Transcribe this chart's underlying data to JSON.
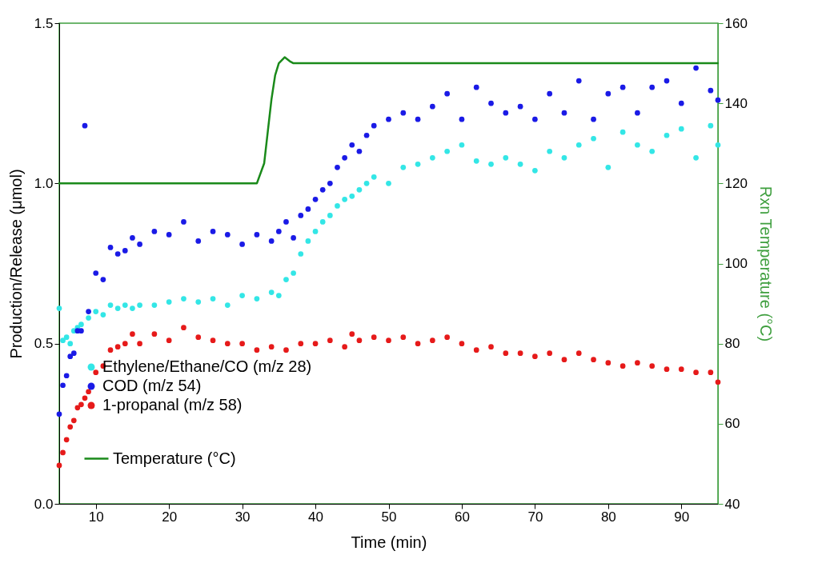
{
  "chart_data": {
    "type": "scatter",
    "xlabel": "Time (min)",
    "ylabel": "Production/Release (μmol)",
    "y2label": "Rxn Temperature (°C)",
    "xlim": [
      5,
      95
    ],
    "xticks": [
      10,
      20,
      30,
      40,
      50,
      60,
      70,
      80,
      90
    ],
    "ylim": [
      0,
      1.5
    ],
    "yticks": [
      {
        "value": 0,
        "label": "0.0"
      },
      0.5,
      {
        "value": 1,
        "label": "1.0"
      },
      1.5
    ],
    "y2lim": [
      40,
      160
    ],
    "y2ticks": [
      40,
      60,
      80,
      100,
      120,
      140,
      160
    ],
    "grid": false,
    "legend": "bottom left",
    "marker": "circle",
    "series": [
      {
        "name": "Ethylene/Ethane/CO (m/z 28)",
        "color": "#33e6e6",
        "x": [
          5,
          5.5,
          6,
          6.5,
          7,
          7.5,
          8,
          9,
          10,
          11,
          12,
          13,
          14,
          15,
          16,
          18,
          20,
          22,
          24,
          26,
          28,
          30,
          32,
          34,
          35,
          36,
          37,
          38,
          39,
          40,
          41,
          42,
          43,
          44,
          45,
          46,
          47,
          48,
          50,
          52,
          54,
          56,
          58,
          60,
          62,
          64,
          66,
          68,
          70,
          72,
          74,
          76,
          78,
          80,
          82,
          84,
          86,
          88,
          90,
          92,
          94,
          95
        ],
        "values": [
          0.61,
          0.51,
          0.52,
          0.5,
          0.54,
          0.55,
          0.56,
          0.58,
          0.6,
          0.59,
          0.62,
          0.61,
          0.62,
          0.61,
          0.62,
          0.62,
          0.63,
          0.64,
          0.63,
          0.64,
          0.62,
          0.65,
          0.64,
          0.66,
          0.65,
          0.7,
          0.72,
          0.78,
          0.82,
          0.85,
          0.88,
          0.9,
          0.93,
          0.95,
          0.96,
          0.98,
          1.0,
          1.02,
          1.0,
          1.05,
          1.06,
          1.08,
          1.1,
          1.12,
          1.07,
          1.06,
          1.08,
          1.06,
          1.04,
          1.1,
          1.08,
          1.12,
          1.14,
          1.05,
          1.16,
          1.12,
          1.1,
          1.15,
          1.17,
          1.08,
          1.18,
          1.12
        ]
      },
      {
        "name": "COD (m/z 54)",
        "color": "#1a1ae6",
        "x": [
          5,
          5.5,
          6,
          6.5,
          7,
          7.5,
          8,
          8.5,
          9,
          10,
          11,
          12,
          13,
          14,
          15,
          16,
          18,
          20,
          22,
          24,
          26,
          28,
          30,
          32,
          34,
          35,
          36,
          37,
          38,
          39,
          40,
          41,
          42,
          43,
          44,
          45,
          46,
          47,
          48,
          50,
          52,
          54,
          56,
          58,
          60,
          62,
          64,
          66,
          68,
          70,
          72,
          74,
          76,
          78,
          80,
          82,
          84,
          86,
          88,
          90,
          92,
          94,
          95
        ],
        "values": [
          0.28,
          0.37,
          0.4,
          0.46,
          0.47,
          0.54,
          0.54,
          1.18,
          0.6,
          0.72,
          0.7,
          0.8,
          0.78,
          0.79,
          0.83,
          0.81,
          0.85,
          0.84,
          0.88,
          0.82,
          0.85,
          0.84,
          0.81,
          0.84,
          0.82,
          0.85,
          0.88,
          0.83,
          0.9,
          0.92,
          0.95,
          0.98,
          1.0,
          1.05,
          1.08,
          1.12,
          1.1,
          1.15,
          1.18,
          1.2,
          1.22,
          1.2,
          1.24,
          1.28,
          1.2,
          1.3,
          1.25,
          1.22,
          1.24,
          1.2,
          1.28,
          1.22,
          1.32,
          1.2,
          1.28,
          1.3,
          1.22,
          1.3,
          1.32,
          1.25,
          1.36,
          1.29,
          1.26
        ]
      },
      {
        "name": "1-propanal (m/z 58)",
        "color": "#e61a1a",
        "x": [
          5,
          5.5,
          6,
          6.5,
          7,
          7.5,
          8,
          8.5,
          9,
          10,
          11,
          12,
          13,
          14,
          15,
          16,
          18,
          20,
          22,
          24,
          26,
          28,
          30,
          32,
          34,
          36,
          38,
          40,
          42,
          44,
          45,
          46,
          48,
          50,
          52,
          54,
          56,
          58,
          60,
          62,
          64,
          66,
          68,
          70,
          72,
          74,
          76,
          78,
          80,
          82,
          84,
          86,
          88,
          90,
          92,
          94,
          95
        ],
        "values": [
          0.12,
          0.16,
          0.2,
          0.24,
          0.26,
          0.3,
          0.31,
          0.33,
          0.35,
          0.41,
          0.43,
          0.48,
          0.49,
          0.5,
          0.53,
          0.5,
          0.53,
          0.51,
          0.55,
          0.52,
          0.51,
          0.5,
          0.5,
          0.48,
          0.49,
          0.48,
          0.5,
          0.5,
          0.51,
          0.49,
          0.53,
          0.51,
          0.52,
          0.51,
          0.52,
          0.5,
          0.51,
          0.52,
          0.5,
          0.48,
          0.49,
          0.47,
          0.47,
          0.46,
          0.47,
          0.45,
          0.47,
          0.45,
          0.44,
          0.43,
          0.44,
          0.43,
          0.42,
          0.42,
          0.41,
          0.41,
          0.38
        ]
      },
      {
        "name": "Temperature (°C)",
        "type": "line",
        "axis": "y2",
        "marker": "none",
        "line_style": "solid",
        "color": "#1a8a1a",
        "x": [
          5,
          32,
          33,
          33.5,
          34,
          34.5,
          35,
          35.8,
          36.5,
          37,
          95
        ],
        "values": [
          120,
          120,
          125,
          133,
          141,
          147,
          150,
          151.5,
          150.5,
          150,
          150
        ]
      }
    ]
  }
}
